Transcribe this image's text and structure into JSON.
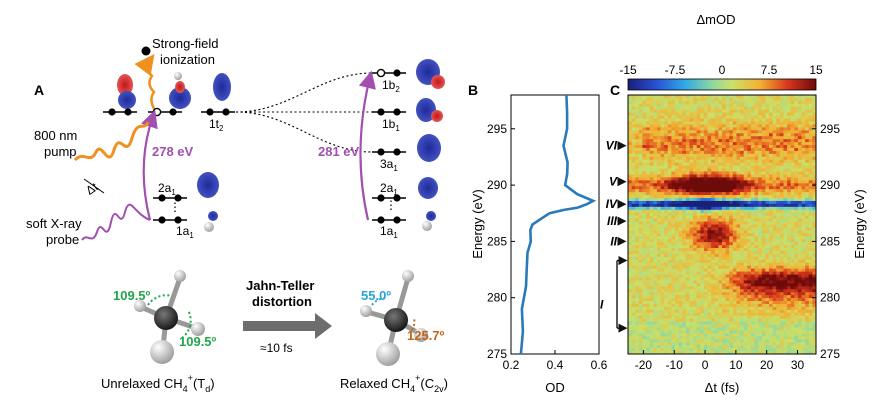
{
  "panel_a": {
    "label": "A",
    "strong_field_1": "Strong-field",
    "strong_field_2": "ionization",
    "pump_1": "800 nm",
    "pump_2": "pump",
    "probe_1": "soft X-ray",
    "probe_2": "probe",
    "delay": "Δt",
    "ev_left": "278 eV",
    "ev_right": "281 eV",
    "orb_1t2": "1t",
    "orb_1t2_sub": "2",
    "orb_2a1": "2a",
    "orb_2a1_sub": "1",
    "orb_1a1": "1a",
    "orb_1a1_sub": "1",
    "r_1b2": "1b",
    "r_1b2_sub": "2",
    "r_1b1": "1b",
    "r_1b1_sub": "1",
    "r_3a1": "3a",
    "r_3a1_sub": "1",
    "r_2a1": "2a",
    "r_2a1_sub": "1",
    "r_1a1": "1a",
    "r_1a1_sub": "1",
    "angle_1": "109.5º",
    "angle_2": "109.5º",
    "angle_3": "55.0º",
    "angle_4": "125.7º",
    "jt_1": "Jahn-Teller",
    "jt_2": "distortion",
    "jt_time": "≈10 fs",
    "unrelaxed": "Unrelaxed CH",
    "unrelaxed_sup": "4",
    "unrelaxed_plus": "+",
    "unrelaxed_sym": "(T",
    "unrelaxed_sub": "d",
    "unrelaxed_close": ")",
    "relaxed": "Relaxed CH",
    "relaxed_sub4": "4",
    "relaxed_plus": "+",
    "relaxed_sym": "(C",
    "relaxed_sub": "2v",
    "relaxed_close": ")",
    "colors": {
      "orange": "#f0901e",
      "purple": "#a24fb0",
      "green": "#22a64a",
      "cyan": "#26a4d8",
      "brown": "#c0651a"
    }
  },
  "panel_b": {
    "label": "B",
    "ylabel": "Energy (eV)",
    "xlabel": "OD",
    "chart_data": {
      "type": "line",
      "x_ticks": [
        "0.2",
        "0.4",
        "0.6"
      ],
      "y_ticks": [
        "275",
        "280",
        "285",
        "290",
        "295"
      ],
      "xlim": [
        0.2,
        0.6
      ],
      "ylim": [
        275,
        298
      ],
      "series": [
        {
          "od": [
            0.245,
            0.25,
            0.255,
            0.265,
            0.27,
            0.28,
            0.285,
            0.29,
            0.3,
            0.33,
            0.38,
            0.44,
            0.5,
            0.55,
            0.57,
            0.5,
            0.45,
            0.45,
            0.46,
            0.44,
            0.45,
            0.46,
            0.45
          ],
          "energy": [
            275,
            277,
            279,
            281,
            282.5,
            284,
            285,
            286,
            286.5,
            287,
            287.5,
            287.8,
            288,
            288.3,
            288.6,
            289.2,
            290,
            291,
            292,
            293.5,
            295,
            296.5,
            298
          ]
        }
      ],
      "color": "#2a7ab9"
    }
  },
  "panel_c": {
    "label": "C",
    "colorbar_title": "ΔmOD",
    "colorbar_ticks": [
      "-15",
      "-7.5",
      "0",
      "7.5",
      "15"
    ],
    "xlabel": "Δt (fs)",
    "ylabel": "Energy (eV)",
    "x_ticks": [
      "-20",
      "-10",
      "0",
      "10",
      "20",
      "30"
    ],
    "y_ticks": [
      "275",
      "280",
      "285",
      "290",
      "295"
    ],
    "features": [
      "VI",
      "V",
      "IV",
      "III",
      "II",
      "I"
    ],
    "chart_data": {
      "type": "heatmap",
      "xlim": [
        -25,
        36
      ],
      "ylim": [
        275,
        298
      ],
      "colorbar_range": [
        -15,
        15
      ],
      "feature_energies": {
        "VI": 293.5,
        "V": 290.3,
        "IV": 288.3,
        "III": 286.8,
        "II": 285.0,
        "I": 279.5
      },
      "bands": [
        {
          "name": "VI",
          "center_e": 293.5,
          "center_t": 5,
          "amp": 7
        },
        {
          "name": "V",
          "center_e": 290.0,
          "center_t": 0,
          "amp": 14
        },
        {
          "name": "IV",
          "center_e": 288.3,
          "center_t": 0,
          "amp": -15
        },
        {
          "name": "III-II",
          "center_e": 285.5,
          "center_t": 3,
          "amp": 10
        },
        {
          "name": "I",
          "center_e": 281.5,
          "center_t": 20,
          "amp": 11
        }
      ]
    }
  }
}
